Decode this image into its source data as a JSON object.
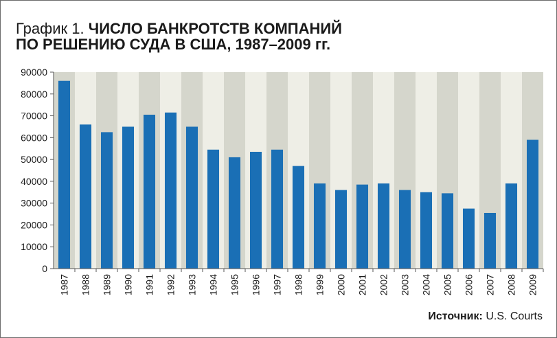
{
  "title": {
    "prefix": "График 1.",
    "line1": "ЧИСЛО БАНКРОТСТВ КОМПАНИЙ",
    "line2": "ПО РЕШЕНИЮ СУДА В США, 1987–2009 гг."
  },
  "source": {
    "label": "Источник:",
    "value": "U.S. Courts"
  },
  "colors": {
    "bar": "#1a6fb5",
    "band_dark": "#d5d6cc",
    "band_light": "#eeeee6",
    "axis": "#555555",
    "text": "#1a1a1a"
  },
  "chart_data": {
    "type": "bar",
    "title": "ЧИСЛО БАНКРОТСТВ КОМПАНИЙ ПО РЕШЕНИЮ СУДА В США, 1987–2009 гг.",
    "categories": [
      "1987",
      "1988",
      "1989",
      "1990",
      "1991",
      "1992",
      "1993",
      "1994",
      "1995",
      "1996",
      "1997",
      "1998",
      "1999",
      "2000",
      "2001",
      "2002",
      "2003",
      "2004",
      "2005",
      "2006",
      "2007",
      "2008",
      "2009"
    ],
    "values": [
      86000,
      66000,
      62500,
      65000,
      70500,
      71500,
      65000,
      54500,
      51000,
      53500,
      54500,
      47000,
      39000,
      36000,
      38500,
      39000,
      36000,
      35000,
      34500,
      27500,
      25500,
      39000,
      59000
    ],
    "yticks": [
      "0",
      "10000",
      "20000",
      "30000",
      "40000",
      "50000",
      "60000",
      "70000",
      "80000",
      "90000"
    ],
    "ylim": [
      0,
      90000
    ],
    "xlabel": "",
    "ylabel": "",
    "grid": false,
    "legend": "none",
    "background_bands": "alternating"
  }
}
